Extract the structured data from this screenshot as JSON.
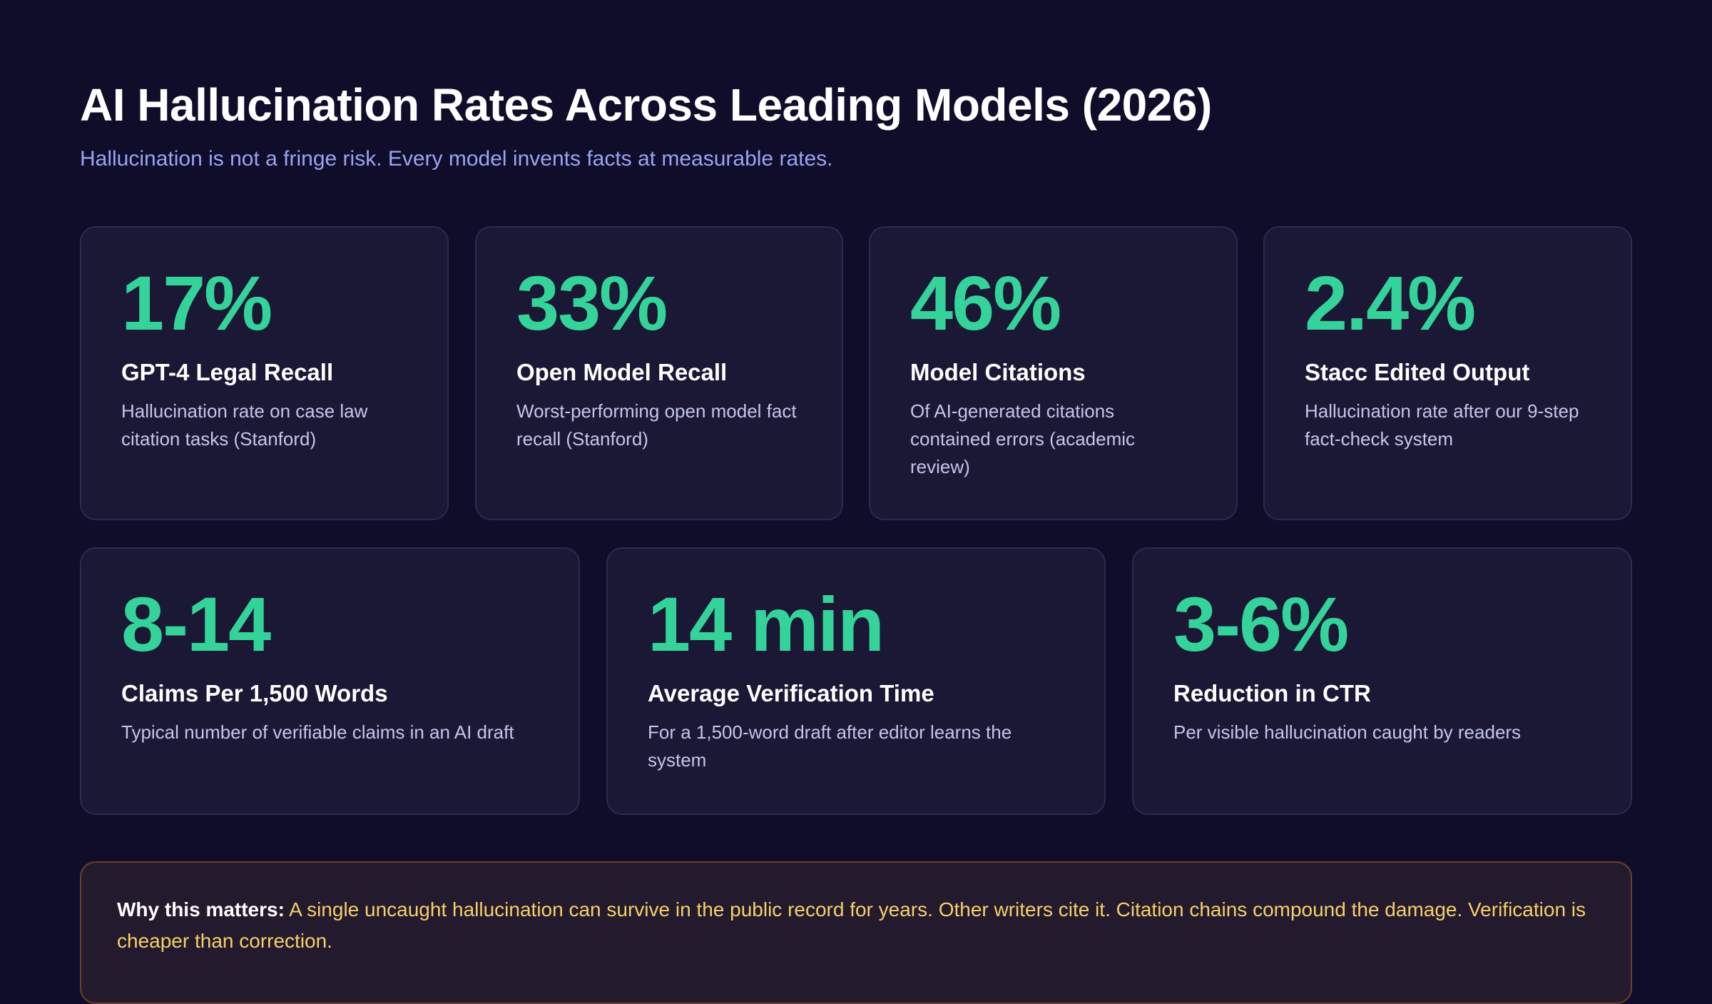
{
  "header": {
    "title": "AI Hallucination Rates Across Leading Models (2026)",
    "subtitle": "Hallucination is not a fringe risk. Every model invents facts at measurable rates."
  },
  "stats_row_1": [
    {
      "value": "17%",
      "label": "GPT-4 Legal Recall",
      "description": "Hallucination rate on case law citation tasks (Stanford)"
    },
    {
      "value": "33%",
      "label": "Open Model Recall",
      "description": "Worst-performing open model fact recall (Stanford)"
    },
    {
      "value": "46%",
      "label": "Model Citations",
      "description": "Of AI-generated citations contained errors (academic review)"
    },
    {
      "value": "2.4%",
      "label": "Stacc Edited Output",
      "description": "Hallucination rate after our 9-step fact-check system"
    }
  ],
  "stats_row_2": [
    {
      "value": "8-14",
      "label": "Claims Per 1,500 Words",
      "description": "Typical number of verifiable claims in an AI draft"
    },
    {
      "value": "14 min",
      "label": "Average Verification Time",
      "description": "For a 1,500-word draft after editor learns the system"
    },
    {
      "value": "3-6%",
      "label": "Reduction in CTR",
      "description": "Per visible hallucination caught by readers"
    }
  ],
  "callout": {
    "lead": "Why this matters:",
    "text": "A single uncaught hallucination can survive in the public record for years. Other writers cite it. Citation chains compound the damage. Verification is cheaper than correction."
  },
  "colors": {
    "background": "#100d2a",
    "card": "#1b1836",
    "accent_green": "#34d399",
    "subtitle_blue": "#9aa4f2",
    "callout_text": "#f6d06a"
  }
}
